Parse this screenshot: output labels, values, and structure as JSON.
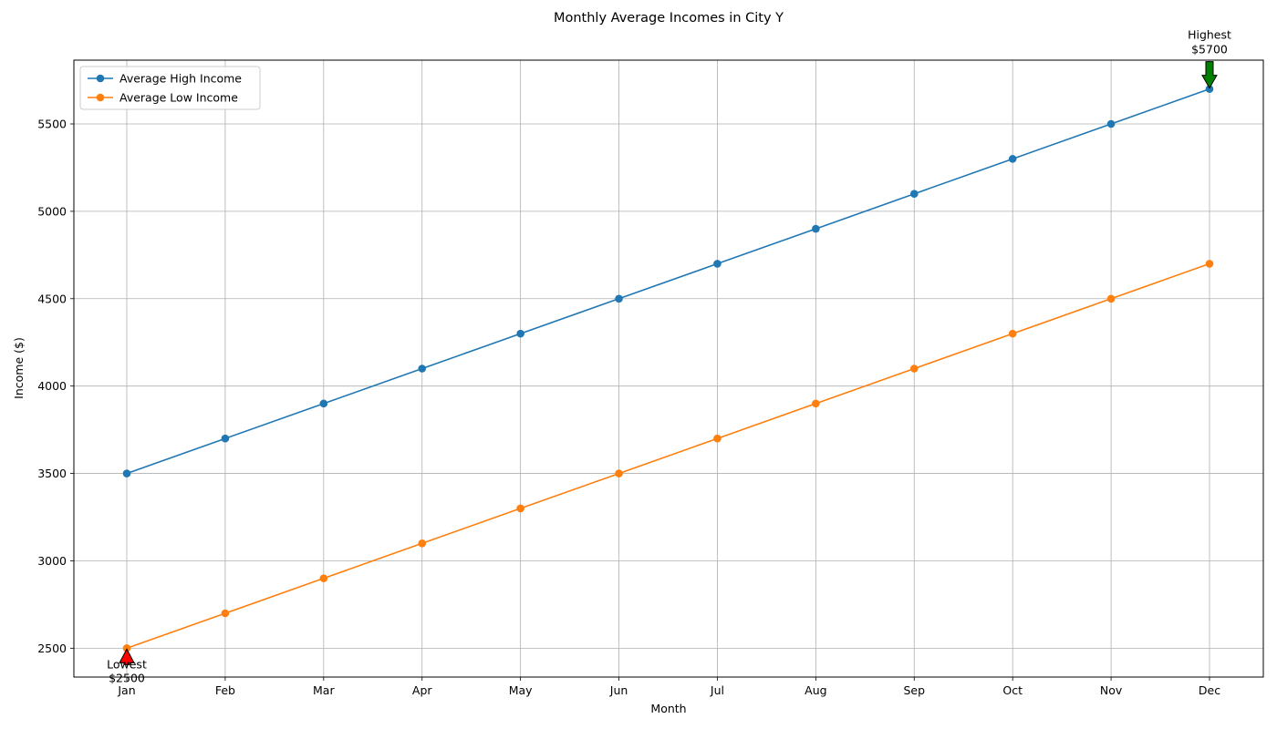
{
  "chart_data": {
    "type": "line",
    "title": "Monthly Average Incomes in City Y",
    "xlabel": "Month",
    "ylabel": "Income ($)",
    "categories": [
      "Jan",
      "Feb",
      "Mar",
      "Apr",
      "May",
      "Jun",
      "Jul",
      "Aug",
      "Sep",
      "Oct",
      "Nov",
      "Dec"
    ],
    "yticks": [
      2500,
      3000,
      3500,
      4000,
      4500,
      5000,
      5500
    ],
    "ylim": [
      2335,
      5865
    ],
    "grid": true,
    "legend_position": "top-left",
    "series": [
      {
        "name": "Average High Income",
        "color": "#1f77b4",
        "values": [
          3500,
          3700,
          3900,
          4100,
          4300,
          4500,
          4700,
          4900,
          5100,
          5300,
          5500,
          5700
        ]
      },
      {
        "name": "Average Low Income",
        "color": "#ff7f0e",
        "values": [
          2500,
          2700,
          2900,
          3100,
          3300,
          3500,
          3700,
          3900,
          4100,
          4300,
          4500,
          4700
        ]
      }
    ],
    "annotations": [
      {
        "id": "lowest",
        "line1": "Lowest",
        "line2": "$2500",
        "category": "Jan",
        "value": 2500,
        "arrow_color": "#ff0000",
        "direction": "up"
      },
      {
        "id": "highest",
        "line1": "Highest",
        "line2": "$5700",
        "category": "Dec",
        "value": 5700,
        "arrow_color": "#008000",
        "direction": "down"
      }
    ]
  }
}
